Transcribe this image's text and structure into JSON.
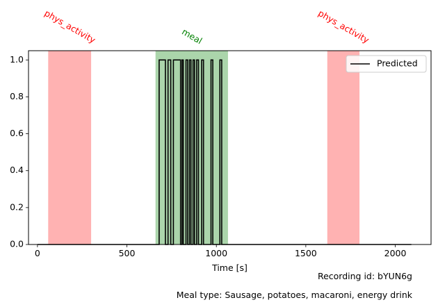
{
  "chart_data": {
    "type": "line",
    "xlabel": "Time [s]",
    "ylabel": "",
    "xlim": [
      -50,
      2200
    ],
    "ylim": [
      0,
      1.05
    ],
    "xticks": [
      0,
      500,
      1000,
      1500,
      2000
    ],
    "yticks": [
      0.0,
      0.2,
      0.4,
      0.6,
      0.8,
      1.0
    ],
    "xtick_labels": [
      "0",
      "500",
      "1000",
      "1500",
      "2000"
    ],
    "ytick_labels": [
      "0.0",
      "0.2",
      "0.4",
      "0.6",
      "0.8",
      "1.0"
    ],
    "grid": false,
    "legend_position": "top-right",
    "series": [
      {
        "name": "Predicted",
        "color": "#000000",
        "step": true,
        "x": [
          0,
          680,
          680,
          715,
          715,
          730,
          730,
          745,
          745,
          760,
          760,
          800,
          800,
          808,
          808,
          815,
          815,
          830,
          830,
          840,
          840,
          850,
          850,
          858,
          858,
          870,
          870,
          878,
          878,
          890,
          890,
          900,
          900,
          918,
          918,
          928,
          928,
          970,
          970,
          980,
          980,
          1020,
          1020,
          1030,
          1030,
          1065,
          1065,
          2090
        ],
        "y": [
          0,
          0,
          1,
          1,
          0,
          0,
          1,
          1,
          0,
          0,
          1,
          1,
          0,
          0,
          1,
          1,
          0,
          0,
          1,
          1,
          0,
          0,
          1,
          1,
          0,
          0,
          1,
          1,
          0,
          0,
          1,
          1,
          0,
          0,
          1,
          1,
          0,
          0,
          1,
          1,
          0,
          0,
          1,
          1,
          0,
          0,
          0,
          0
        ]
      }
    ],
    "spans": [
      {
        "label": "phys_activity",
        "start": 60,
        "end": 300,
        "color": "#ff0000",
        "alpha": 0.3
      },
      {
        "label": "meal",
        "start": 660,
        "end": 1065,
        "color": "#008000",
        "alpha": 0.33
      },
      {
        "label": "phys_activity",
        "start": 1620,
        "end": 1800,
        "color": "#ff0000",
        "alpha": 0.3
      }
    ],
    "span_label_colors": {
      "phys_activity": "#ff0000",
      "meal": "#008000"
    }
  },
  "captions": {
    "recording_id": "Recording id: bYUN6g",
    "meal_type": "Meal type: Sausage, potatoes, macaroni, energy drink"
  }
}
